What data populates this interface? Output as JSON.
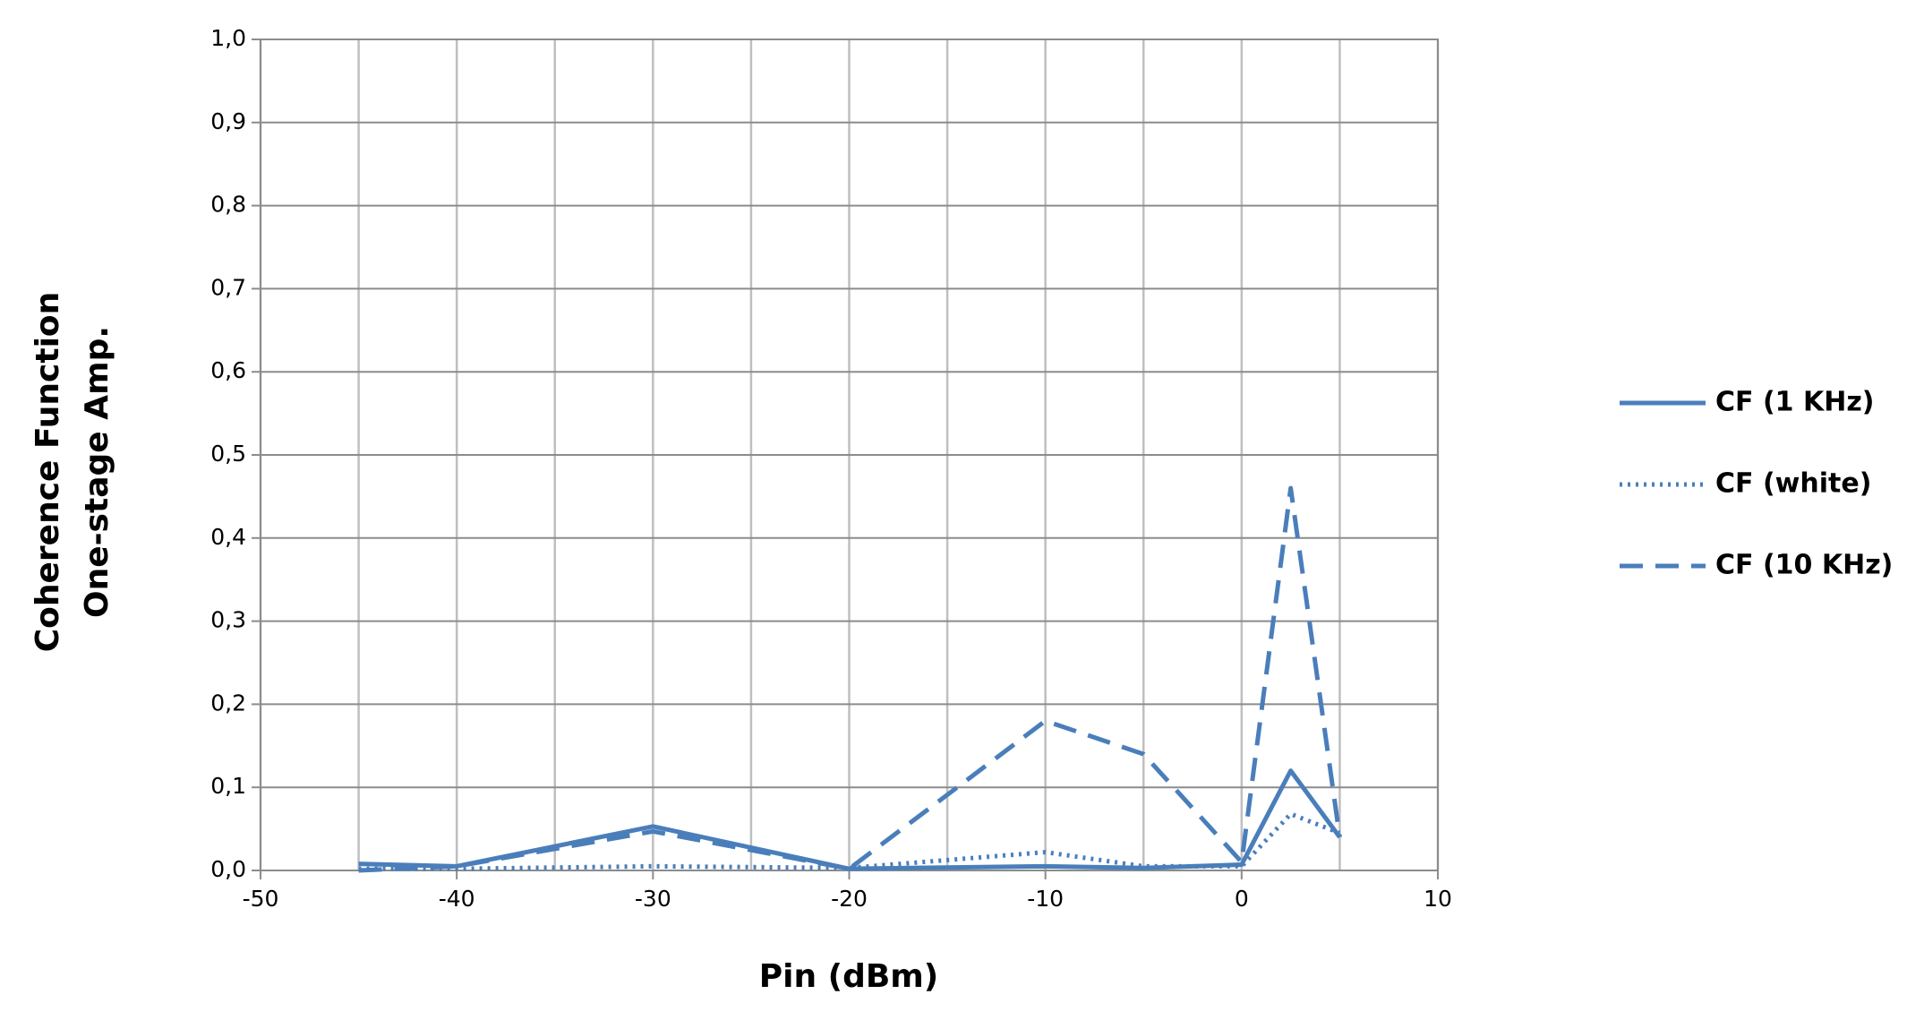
{
  "chart_data": {
    "type": "line",
    "y_label": [
      "Coherence Function",
      "One-stage Amp."
    ],
    "x_label": "Pin (dBm)",
    "x": [
      -45,
      -40,
      -30,
      -20,
      -10,
      -5,
      0,
      2.5,
      5
    ],
    "series": [
      {
        "name": "CF (1 KHz)",
        "color": "#4a7ebb",
        "style": "solid",
        "values": [
          0.008,
          0.005,
          0.053,
          0.002,
          0.005,
          0.003,
          0.007,
          0.12,
          0.04
        ]
      },
      {
        "name": "CF (white)",
        "color": "#4a7ebb",
        "style": "dotted",
        "values": [
          0.002,
          0.002,
          0.005,
          0.003,
          0.022,
          0.005,
          0.005,
          0.068,
          0.045
        ]
      },
      {
        "name": "CF (10 KHz)",
        "color": "#4a7ebb",
        "style": "dashed",
        "values": [
          0.0,
          0.005,
          0.047,
          0.002,
          0.18,
          0.14,
          0.01,
          0.46,
          0.04
        ]
      }
    ],
    "xlim": [
      -50,
      10
    ],
    "xticks": [
      -50,
      -40,
      -30,
      -20,
      -10,
      0,
      10
    ],
    "xgrid": [
      -50,
      -45,
      -40,
      -35,
      -30,
      -25,
      -20,
      -15,
      -10,
      -5,
      0,
      5,
      10
    ],
    "ylim": [
      0,
      1
    ],
    "yticks": [
      {
        "value": 0,
        "label": "0,0"
      },
      {
        "value": 0.1,
        "label": "0,1"
      },
      {
        "value": 0.2,
        "label": "0,2"
      },
      {
        "value": 0.3,
        "label": "0,3"
      },
      {
        "value": 0.4,
        "label": "0,4"
      },
      {
        "value": 0.5,
        "label": "0,5"
      },
      {
        "value": 0.6,
        "label": "0,6"
      },
      {
        "value": 0.7,
        "label": "0,7"
      },
      {
        "value": 0.8,
        "label": "0,8"
      },
      {
        "value": 0.9,
        "label": "0,9"
      },
      {
        "value": 1,
        "label": "1,0"
      }
    ],
    "grid": true,
    "legend": "right"
  }
}
